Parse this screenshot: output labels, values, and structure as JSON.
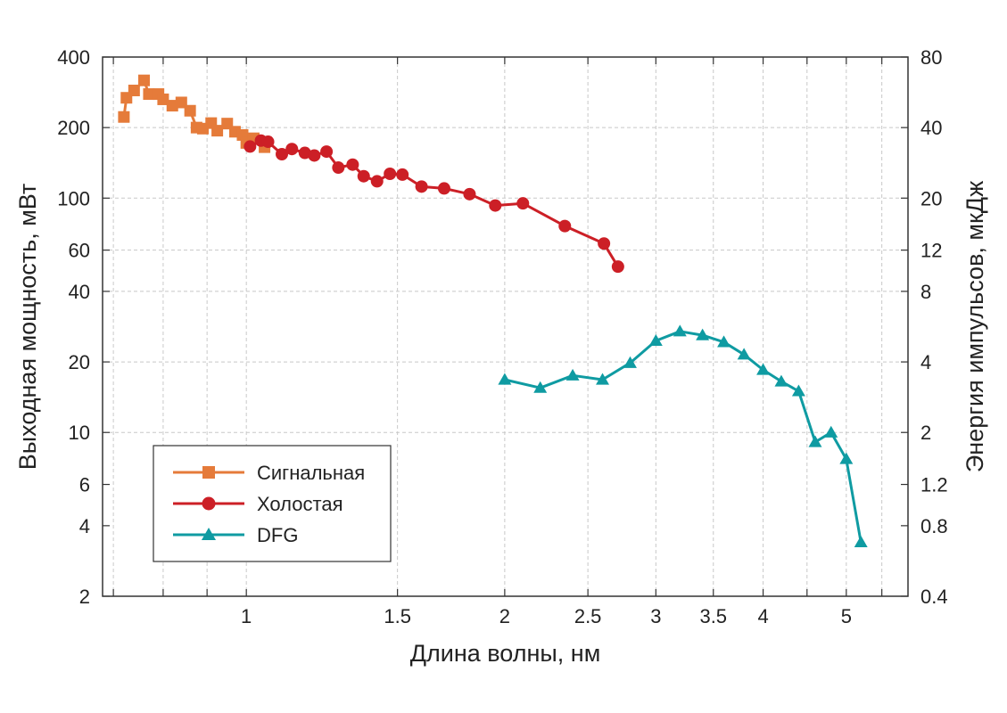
{
  "chart_data": {
    "type": "line",
    "xlabel": "Длина волны, нм",
    "ylabel": "Выходная мощность, мВт",
    "y2label": "Энергия импульсов, мкДж",
    "xscale": "log",
    "yscale": "log",
    "xlim": [
      0.68,
      5.9
    ],
    "ylim": [
      2,
      400
    ],
    "y2lim": [
      0.4,
      80
    ],
    "xticks": [
      {
        "v": 1,
        "label": "1"
      },
      {
        "v": 1.5,
        "label": "1.5"
      },
      {
        "v": 2,
        "label": "2"
      },
      {
        "v": 2.5,
        "label": "2.5"
      },
      {
        "v": 3,
        "label": "3"
      },
      {
        "v": 3.5,
        "label": "3.5"
      },
      {
        "v": 4,
        "label": "4"
      },
      {
        "v": 5,
        "label": "5"
      }
    ],
    "yticks": [
      {
        "v": 2,
        "label": "2"
      },
      {
        "v": 4,
        "label": "4"
      },
      {
        "v": 6,
        "label": "6"
      },
      {
        "v": 10,
        "label": "10"
      },
      {
        "v": 20,
        "label": "20"
      },
      {
        "v": 40,
        "label": "40"
      },
      {
        "v": 60,
        "label": "60"
      },
      {
        "v": 100,
        "label": "100"
      },
      {
        "v": 200,
        "label": "200"
      },
      {
        "v": 400,
        "label": "400"
      }
    ],
    "y2ticks": [
      {
        "v": 0.4,
        "label": "0.4"
      },
      {
        "v": 0.8,
        "label": "0.8"
      },
      {
        "v": 1.2,
        "label": "1.2"
      },
      {
        "v": 2,
        "label": "2"
      },
      {
        "v": 4,
        "label": "4"
      },
      {
        "v": 8,
        "label": "8"
      },
      {
        "v": 12,
        "label": "12"
      },
      {
        "v": 20,
        "label": "20"
      },
      {
        "v": 40,
        "label": "40"
      },
      {
        "v": 80,
        "label": "80"
      }
    ],
    "grid_lines_x": [
      0.7,
      0.8,
      0.9,
      1,
      1.5,
      2,
      2.5,
      3,
      3.5,
      4,
      4.5,
      5,
      5.5
    ],
    "grid_lines_y": [
      10,
      20,
      40,
      60,
      100,
      200
    ],
    "legend_position": "lower-left",
    "series": [
      {
        "name": "Сигнальная",
        "color": "#e57b3a",
        "marker": "square",
        "x": [
          0.72,
          0.725,
          0.74,
          0.76,
          0.77,
          0.79,
          0.8,
          0.82,
          0.84,
          0.86,
          0.875,
          0.89,
          0.91,
          0.925,
          0.95,
          0.97,
          0.99,
          1.0,
          1.02,
          1.05
        ],
        "y": [
          222,
          268,
          288,
          318,
          278,
          278,
          264,
          248,
          256,
          236,
          200,
          198,
          209,
          194,
          208,
          192,
          186,
          172,
          180,
          165
        ]
      },
      {
        "name": "Холостая",
        "color": "#cc1f26",
        "marker": "circle",
        "x": [
          1.01,
          1.04,
          1.06,
          1.1,
          1.13,
          1.17,
          1.2,
          1.24,
          1.28,
          1.33,
          1.37,
          1.42,
          1.47,
          1.52,
          1.6,
          1.7,
          1.82,
          1.95,
          2.1,
          2.35,
          2.61,
          2.71
        ],
        "y": [
          166,
          176,
          174,
          154,
          162,
          156,
          152,
          158,
          135,
          139,
          124,
          118,
          127,
          126,
          112,
          110,
          104,
          93,
          95,
          76,
          64,
          51
        ]
      },
      {
        "name": "DFG",
        "color": "#0f9ba2",
        "marker": "triangle",
        "x": [
          2.0,
          2.2,
          2.4,
          2.6,
          2.8,
          3.0,
          3.2,
          3.4,
          3.6,
          3.8,
          4.0,
          4.2,
          4.4,
          4.6,
          4.8,
          5.0,
          5.2
        ],
        "y": [
          16.8,
          15.5,
          17.5,
          16.8,
          19.8,
          24.6,
          27.0,
          26.0,
          24.3,
          21.5,
          18.5,
          16.5,
          15.0,
          9.1,
          10.0,
          7.7,
          3.4
        ]
      }
    ]
  }
}
